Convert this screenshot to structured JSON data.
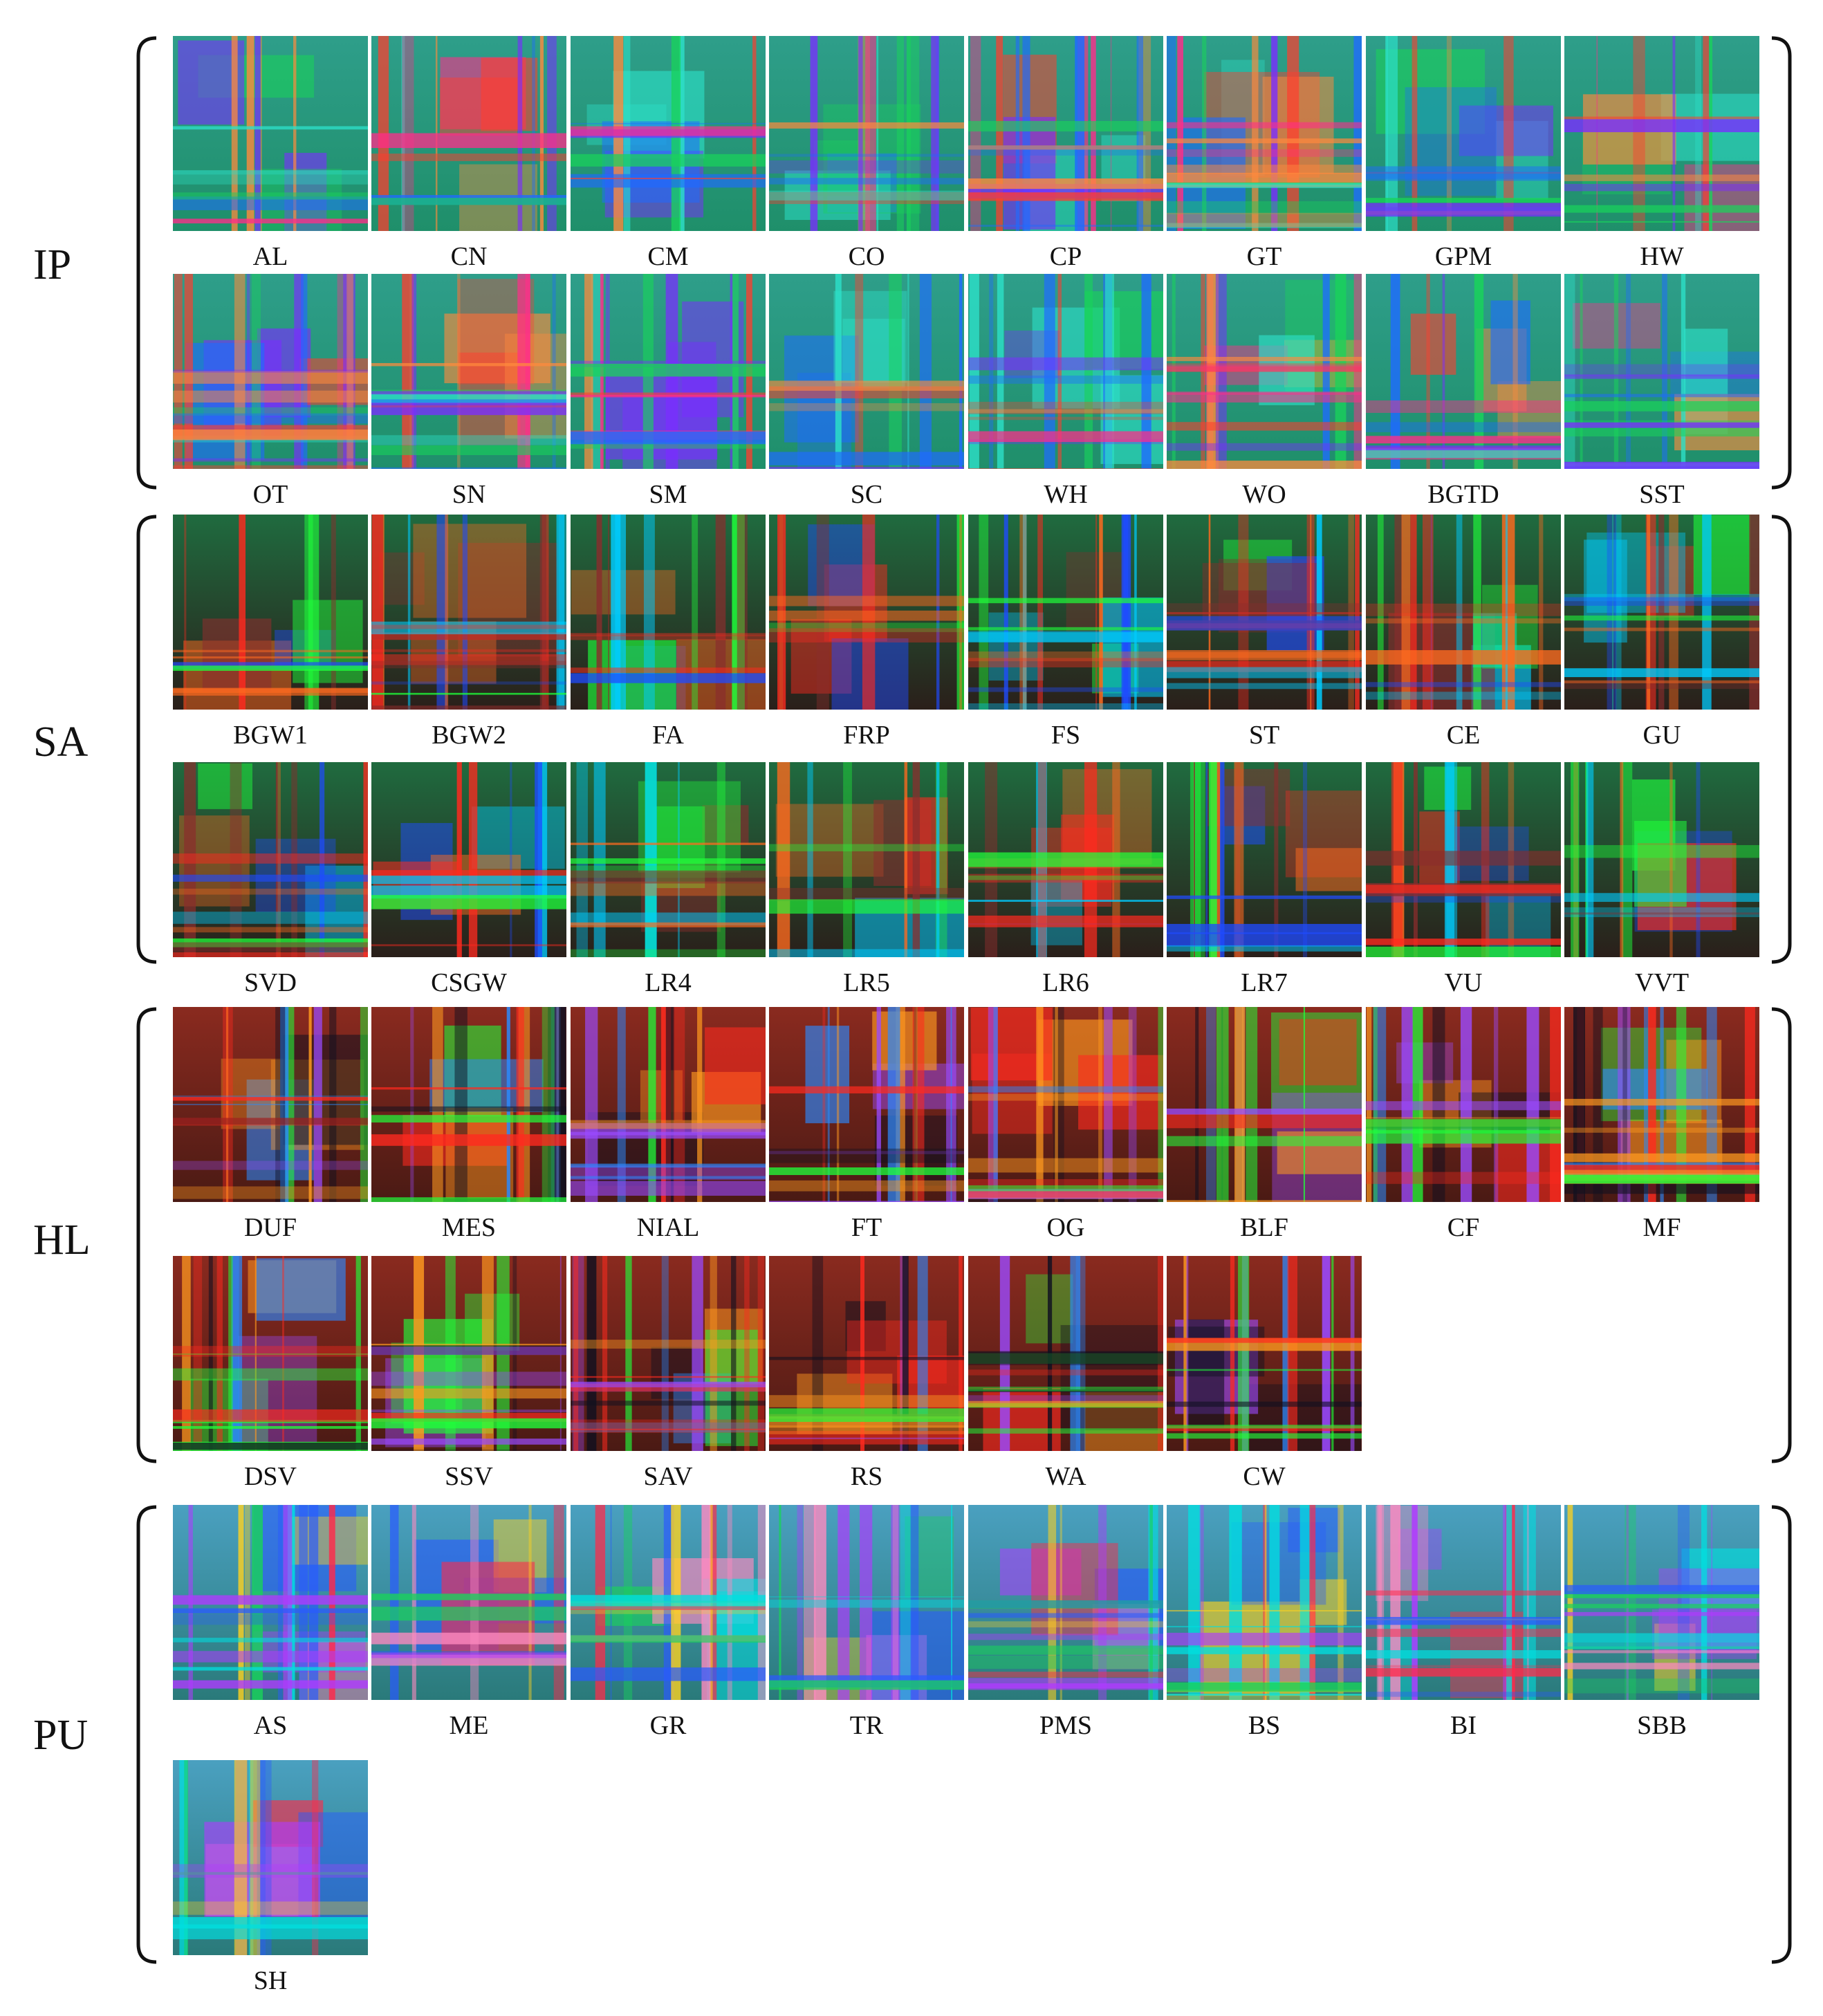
{
  "groups": [
    {
      "label": "IP",
      "palette": "ip",
      "items": [
        "AL",
        "CN",
        "CM",
        "CO",
        "CP",
        "GT",
        "GPM",
        "HW",
        "OT",
        "SN",
        "SM",
        "SC",
        "WH",
        "WO",
        "BGTD",
        "SST"
      ]
    },
    {
      "label": "SA",
      "palette": "sa",
      "items": [
        "BGW1",
        "BGW2",
        "FA",
        "FRP",
        "FS",
        "ST",
        "CE",
        "GU",
        "SVD",
        "CSGW",
        "LR4",
        "LR5",
        "LR6",
        "LR7",
        "VU",
        "VVT"
      ]
    },
    {
      "label": "HL",
      "palette": "hl",
      "items": [
        "DUF",
        "MES",
        "NIAL",
        "FT",
        "OG",
        "BLF",
        "CF",
        "MF",
        "DSV",
        "SSV",
        "SAV",
        "RS",
        "WA",
        "CW"
      ]
    },
    {
      "label": "PU",
      "palette": "pu",
      "items": [
        "AS",
        "ME",
        "GR",
        "TR",
        "PMS",
        "BS",
        "BI",
        "SBB",
        "SH"
      ]
    }
  ],
  "palettes": {
    "ip": {
      "base": "#1f8f6a",
      "top": "#2e9e8a",
      "accents": [
        "#ff3d2e",
        "#ff2d8a",
        "#19d35a",
        "#1f6bff",
        "#ff8a3d",
        "#7a2dff",
        "#2de0c8"
      ]
    },
    "sa": {
      "base": "#2a1f1a",
      "top": "#1f6b3f",
      "accents": [
        "#1fff3a",
        "#1f4bff",
        "#ff2a1f",
        "#8a2d2d",
        "#00ccff",
        "#ff6a1f"
      ]
    },
    "hl": {
      "base": "#4a1a14",
      "top": "#8a2a1f",
      "accents": [
        "#ff2a1f",
        "#1fff3a",
        "#2a8aff",
        "#ff9a1f",
        "#101020",
        "#9a4aff"
      ]
    },
    "pu": {
      "base": "#2a7a7a",
      "top": "#4aa0c0",
      "accents": [
        "#ff2a4a",
        "#19d35a",
        "#ffd21f",
        "#2a5aff",
        "#ff8ac0",
        "#00e0e0",
        "#b03aff"
      ]
    }
  }
}
